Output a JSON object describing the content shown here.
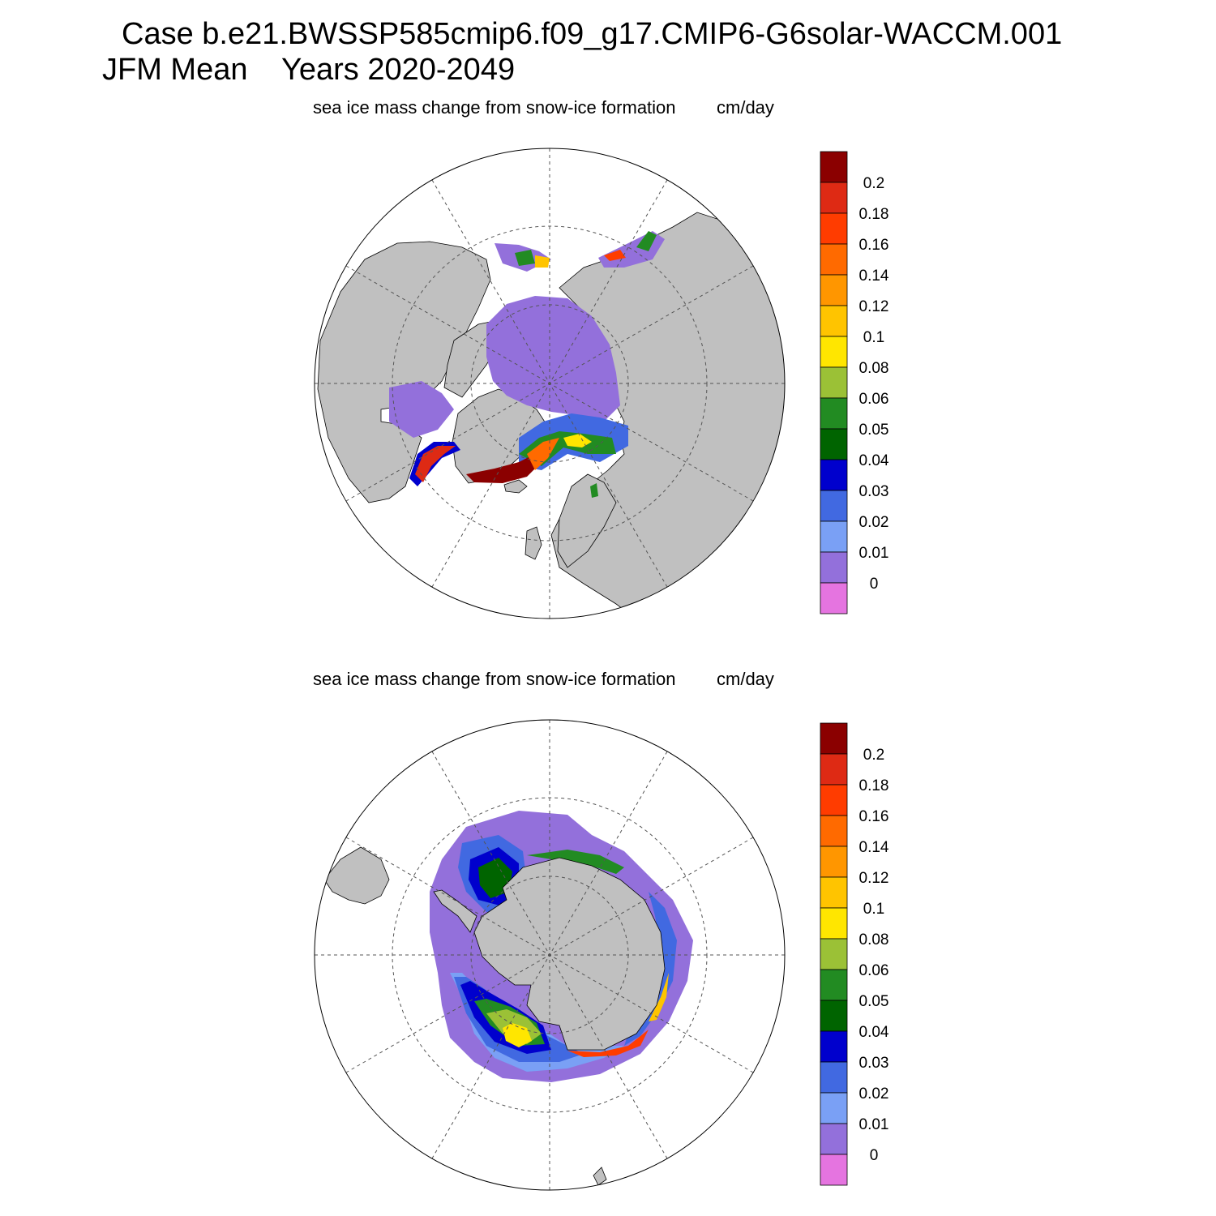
{
  "header": {
    "case_line": "Case b.e21.BWSSP585cmip6.f09_g17.CMIP6-G6solar-WACCM.001",
    "period_line": "JFM Mean    Years 2020-2049"
  },
  "panels": [
    {
      "id": "north",
      "hemisphere": "north",
      "title": "sea ice mass change from snow-ice formation",
      "units": "cm/day"
    },
    {
      "id": "south",
      "hemisphere": "south",
      "title": "sea ice mass change from snow-ice formation",
      "units": "cm/day"
    }
  ],
  "colorbar": {
    "labels": [
      "0.2",
      "0.18",
      "0.16",
      "0.14",
      "0.12",
      "0.1",
      "0.08",
      "0.06",
      "0.05",
      "0.04",
      "0.03",
      "0.02",
      "0.01",
      "0"
    ],
    "colors": [
      "#8b0000",
      "#de2a14",
      "#ff3c00",
      "#ff6a00",
      "#ff9600",
      "#ffc400",
      "#ffe600",
      "#9bc136",
      "#228b22",
      "#006400",
      "#0000cd",
      "#4169e1",
      "#7aa0f5",
      "#9370db",
      "#e574e0"
    ]
  },
  "map_colors": {
    "land": "#c0c0c0",
    "ocean": "#ffffff",
    "grid": "#555555"
  }
}
